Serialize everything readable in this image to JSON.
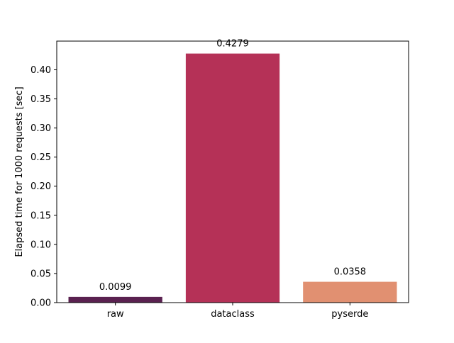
{
  "chart_data": {
    "type": "bar",
    "title": "",
    "xlabel": "",
    "ylabel": "Elapsed time for 1000 requests [sec]",
    "categories": [
      "raw",
      "dataclass",
      "pyserde"
    ],
    "values": [
      0.0099,
      0.4279,
      0.0358
    ],
    "value_labels": [
      "0.0099",
      "0.4279",
      "0.0358"
    ],
    "colors": [
      "#5a2150",
      "#b53157",
      "#e19071"
    ],
    "ylim": [
      0,
      0.4493
    ],
    "yticks": [
      0.0,
      0.05,
      0.1,
      0.15,
      0.2,
      0.25,
      0.3,
      0.35,
      0.4
    ],
    "ytick_labels": [
      "0.00",
      "0.05",
      "0.10",
      "0.15",
      "0.20",
      "0.25",
      "0.30",
      "0.35",
      "0.40"
    ],
    "grid": false,
    "legend": "none"
  }
}
